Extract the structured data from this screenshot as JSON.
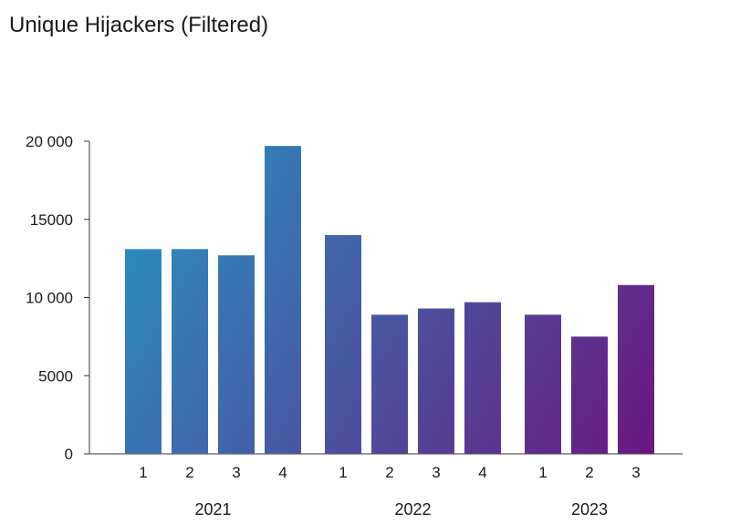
{
  "chart_data": {
    "type": "bar",
    "title": "Unique Hijackers (Filtered)",
    "xlabel": "",
    "ylabel": "",
    "ylim": [
      0,
      20000
    ],
    "y_ticks": [
      0,
      5000,
      10000,
      15000,
      20000
    ],
    "y_tick_labels": [
      "0",
      "5000",
      "10 000",
      "15000",
      "20 000"
    ],
    "groups": [
      {
        "name": "2021",
        "categories": [
          "1",
          "2",
          "3",
          "4"
        ],
        "values": [
          13100,
          13100,
          12700,
          19700
        ]
      },
      {
        "name": "2022",
        "categories": [
          "1",
          "2",
          "3",
          "4"
        ],
        "values": [
          14000,
          8900,
          9300,
          9700
        ]
      },
      {
        "name": "2023",
        "categories": [
          "1",
          "2",
          "3"
        ],
        "values": [
          8900,
          7500,
          10800
        ]
      }
    ],
    "colors": {
      "start": "#2698c5",
      "end": "#6b1680"
    },
    "grid": false,
    "legend": "none"
  }
}
